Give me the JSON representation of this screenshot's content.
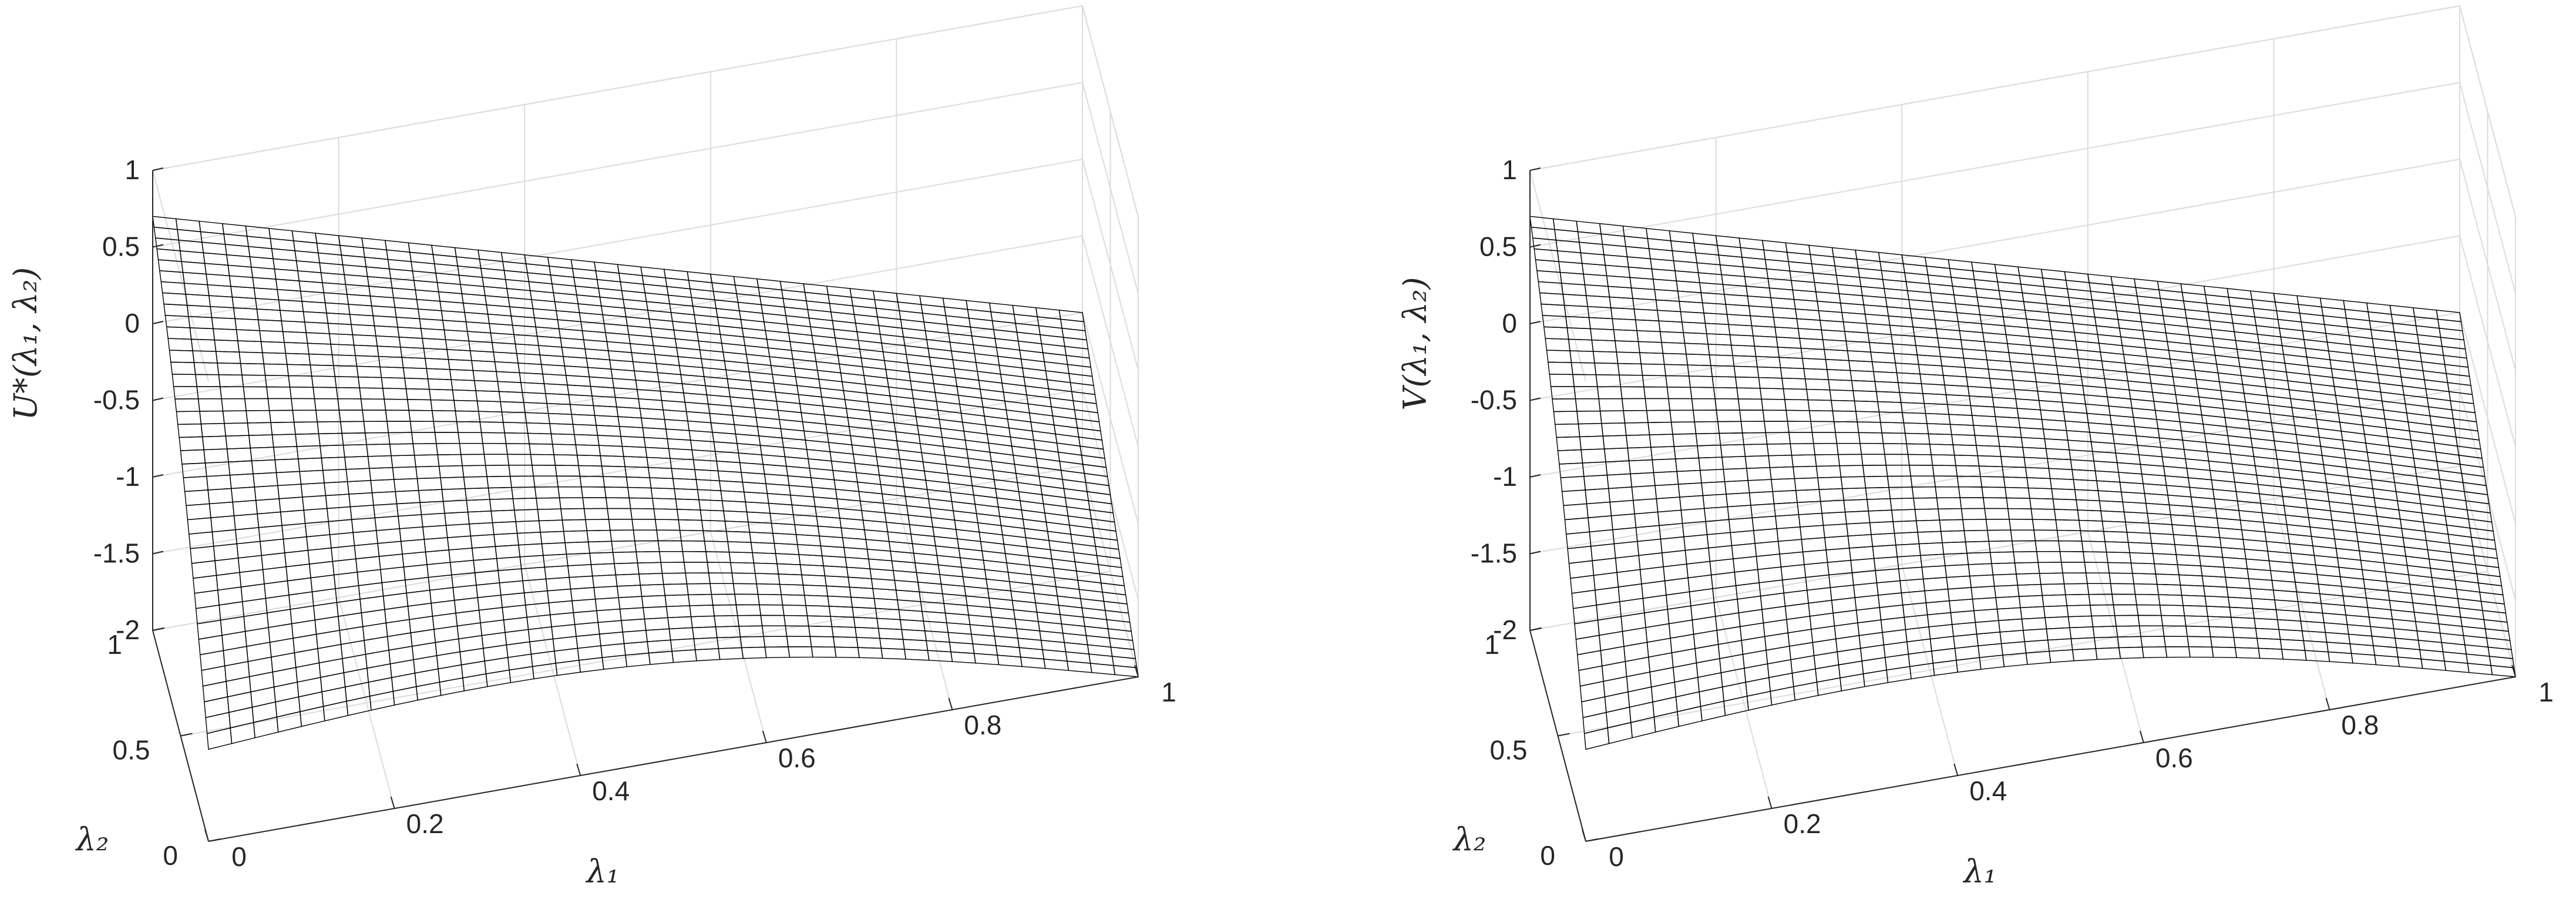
{
  "chart_data": [
    {
      "type": "surface",
      "zlabel": "U*(λ₁, λ₂)",
      "xlabel": "λ₁",
      "ylabel": "λ₂",
      "xlim": [
        0,
        1
      ],
      "ylim": [
        0,
        1
      ],
      "zlim": [
        -2,
        1
      ],
      "x_ticks": [
        "0",
        "0.2",
        "0.4",
        "0.6",
        "0.8",
        "1"
      ],
      "y_ticks": [
        "0",
        "0.5",
        "1"
      ],
      "z_ticks": [
        "-2",
        "-1.5",
        "-1",
        "-0.5",
        "0",
        "0.5",
        "1"
      ],
      "grid": true,
      "colormap": "parula-like (yellow→orange→teal→dark)",
      "corner_values": {
        "x0_y0": -1.4,
        "x0_y1": 0.7,
        "x1_y0": -2.0,
        "x1_y1": -1.0
      },
      "colors": {
        "high": "#e8e032",
        "mid": "#b85c1c",
        "low": "#0d3a3a"
      }
    },
    {
      "type": "surface",
      "zlabel": "V(λ₁, λ₂)",
      "xlabel": "λ₁",
      "ylabel": "λ₂",
      "xlim": [
        0,
        1
      ],
      "ylim": [
        0,
        1
      ],
      "zlim": [
        -2,
        1
      ],
      "x_ticks": [
        "0",
        "0.2",
        "0.4",
        "0.6",
        "0.8",
        "1"
      ],
      "y_ticks": [
        "0",
        "0.5",
        "1"
      ],
      "z_ticks": [
        "-2",
        "-1.5",
        "-1",
        "-0.5",
        "0",
        "0.5",
        "1"
      ],
      "grid": true,
      "colormap": "parula-like (yellow→orange→teal→dark)",
      "corner_values": {
        "x0_y0": -1.4,
        "x0_y1": 0.7,
        "x1_y0": -2.0,
        "x1_y1": -1.0
      },
      "colors": {
        "high": "#e8e032",
        "mid": "#b85c1c",
        "low": "#0d3a3a"
      }
    }
  ]
}
